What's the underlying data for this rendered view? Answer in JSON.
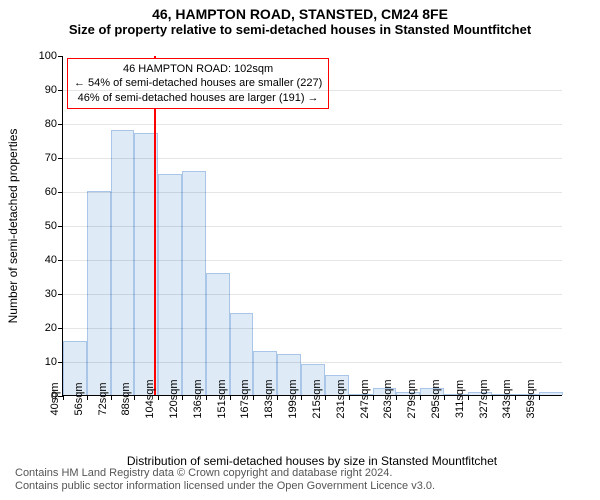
{
  "title": "46, HAMPTON ROAD, STANSTED, CM24 8FE",
  "subtitle": "Size of property relative to semi-detached houses in Stansted Mountfitchet",
  "chart": {
    "type": "histogram",
    "background_color": "#ffffff",
    "bar_fill_color": "#deeaf6",
    "bar_border_color": "#a9c5e8",
    "bar_border_width": 1,
    "marker_color": "#ff0000",
    "grid_color": "rgba(0,0,0,0.1)",
    "axis_color": "#000000",
    "ylabel": "Number of semi-detached properties",
    "xlabel": "Distribution of semi-detached houses by size in Stansted Mountfitchet",
    "ylim_max": 100,
    "ytick_step": 10,
    "xtick_labels": [
      "40sqm",
      "56sqm",
      "72sqm",
      "88sqm",
      "104sqm",
      "120sqm",
      "136sqm",
      "151sqm",
      "167sqm",
      "183sqm",
      "199sqm",
      "215sqm",
      "231sqm",
      "247sqm",
      "263sqm",
      "279sqm",
      "295sqm",
      "311sqm",
      "327sqm",
      "343sqm",
      "359sqm"
    ],
    "values": [
      16,
      60,
      78,
      77,
      65,
      66,
      36,
      24,
      13,
      12,
      9,
      6,
      0,
      2,
      1,
      2,
      0,
      1,
      0,
      0,
      1
    ],
    "marker_value": 102,
    "x_min": 40,
    "x_bin_width": 16,
    "callout": {
      "line1": "46 HAMPTON ROAD: 102sqm",
      "line2": "← 54% of semi-detached houses are smaller (227)",
      "line3": "46% of semi-detached houses are larger (191) →"
    },
    "label_fontsize": 12,
    "tick_fontsize": 11,
    "title_fontsize": 14
  },
  "footer": {
    "line1": "Contains HM Land Registry data © Crown copyright and database right 2024.",
    "line2": "Contains public sector information licensed under the Open Government Licence v3.0.",
    "color": "#555555"
  }
}
